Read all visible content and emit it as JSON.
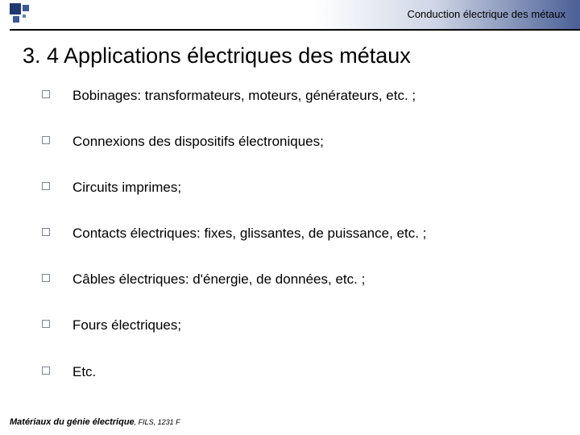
{
  "header": {
    "course_topic": "Conduction électrique des métaux"
  },
  "title": "3. 4 Applications électriques des métaux",
  "bullets": {
    "b0": "Bobinages: transformateurs, moteurs, générateurs, etc. ;",
    "b1": "Connexions des dispositifs électroniques;",
    "b2": "Circuits imprimes;",
    "b3": "Contacts électriques: fixes, glissantes, de puissance, etc. ;",
    "b4": "Câbles électriques: d'énergie, de données, etc. ;",
    "b5": "Fours électriques;",
    "b6": "Etc."
  },
  "footer": {
    "main": "Matériaux du génie électrique",
    "suffix": ", FILS, 1231 F"
  },
  "style": {
    "background_color": "#ffffff",
    "text_color": "#000000",
    "bullet_border_color": "#7a8499",
    "gradient_start": "#ffffff",
    "gradient_end": "#4a5f96",
    "title_fontsize": 27,
    "body_fontsize": 17,
    "header_fontsize": 13,
    "footer_fontsize": 11
  }
}
